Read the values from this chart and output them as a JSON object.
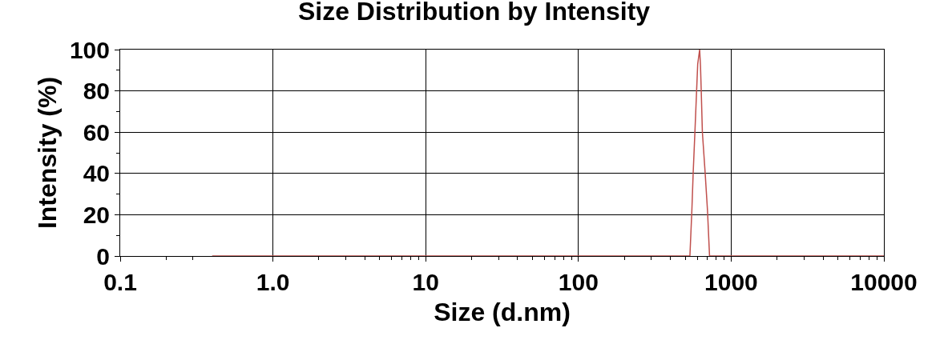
{
  "chart_data": {
    "type": "line",
    "title": "Size Distribution by Intensity",
    "xlabel": "Size (d.nm)",
    "ylabel": "Intensity (%)",
    "log": "x",
    "grid": true,
    "marker": "none",
    "line_style": "solid",
    "xlim": [
      0.1,
      10000
    ],
    "xticks": [
      0.1,
      {
        "value": 1,
        "label": "1.0"
      },
      10,
      100,
      1000,
      10000,
      {
        "value": 0.2,
        "label": null
      },
      {
        "value": 0.3,
        "label": null
      },
      {
        "value": 2,
        "label": null
      },
      {
        "value": 3,
        "label": null
      },
      {
        "value": 4,
        "label": null
      },
      {
        "value": 5,
        "label": null
      },
      {
        "value": 6,
        "label": null
      },
      {
        "value": 7,
        "label": null
      },
      {
        "value": 8,
        "label": null
      },
      {
        "value": 9,
        "label": null
      },
      {
        "value": 20,
        "label": null
      },
      {
        "value": 30,
        "label": null
      },
      {
        "value": 40,
        "label": null
      },
      {
        "value": 50,
        "label": null
      },
      {
        "value": 60,
        "label": null
      },
      {
        "value": 70,
        "label": null
      },
      {
        "value": 80,
        "label": null
      },
      {
        "value": 90,
        "label": null
      },
      {
        "value": 200,
        "label": null
      },
      {
        "value": 300,
        "label": null
      },
      {
        "value": 400,
        "label": null
      },
      {
        "value": 500,
        "label": null
      },
      {
        "value": 600,
        "label": null
      },
      {
        "value": 700,
        "label": null
      },
      {
        "value": 800,
        "label": null
      },
      {
        "value": 900,
        "label": null
      },
      {
        "value": 2000,
        "label": null
      },
      {
        "value": 3000,
        "label": null
      },
      {
        "value": 4000,
        "label": null
      },
      {
        "value": 5000,
        "label": null
      },
      {
        "value": 6000,
        "label": null
      },
      {
        "value": 7000,
        "label": null
      },
      {
        "value": 8000,
        "label": null
      },
      {
        "value": 9000,
        "label": null
      }
    ],
    "ylim": [
      0,
      100
    ],
    "yticks": [
      0,
      20,
      40,
      60,
      80,
      100,
      {
        "value": 10,
        "label": null
      },
      {
        "value": 30,
        "label": null
      },
      {
        "value": 50,
        "label": null
      },
      {
        "value": 70,
        "label": null
      },
      {
        "value": 90,
        "label": null
      }
    ],
    "series": [
      {
        "color": "#c0504d",
        "x": [
          0.4,
          537,
          553,
          564,
          579,
          594,
          604,
          622,
          630,
          637,
          648,
          676,
          700,
          722,
          10000
        ],
        "values": [
          0,
          0,
          22,
          40,
          60,
          80,
          93,
          100,
          92,
          80,
          60,
          40,
          22,
          0,
          0
        ]
      }
    ]
  }
}
